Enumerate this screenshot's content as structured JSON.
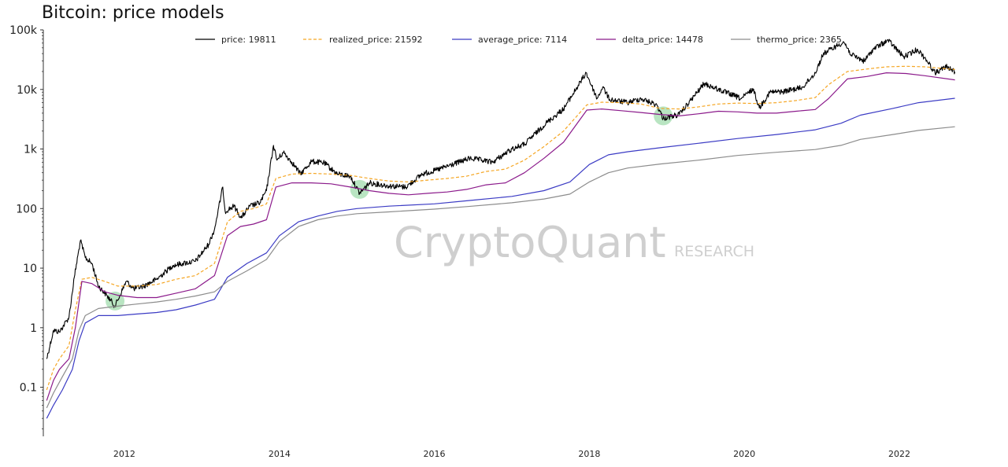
{
  "chart_data": {
    "type": "line",
    "title": "Bitcoin: price models",
    "xlabel": "",
    "ylabel": "",
    "y_scale": "log",
    "ylim": [
      0.015,
      100000
    ],
    "xlim": [
      "2010-12-15",
      "2022-10-10"
    ],
    "grid": false,
    "legend_position": "top",
    "x_ticks": [
      "2012",
      "2014",
      "2016",
      "2018",
      "2020",
      "2022"
    ],
    "y_ticks": [
      "0.1",
      "1",
      "10",
      "100",
      "1k",
      "10k",
      "100k"
    ],
    "series": [
      {
        "name": "price: 19811",
        "color": "#000000",
        "dash": "solid",
        "points": [
          [
            "2010-12-31",
            0.3
          ],
          [
            "2011-02-01",
            0.9
          ],
          [
            "2011-03-01",
            0.85
          ],
          [
            "2011-04-15",
            1.5
          ],
          [
            "2011-05-10",
            7
          ],
          [
            "2011-06-08",
            29
          ],
          [
            "2011-07-01",
            15
          ],
          [
            "2011-08-01",
            12
          ],
          [
            "2011-09-01",
            5
          ],
          [
            "2011-10-10",
            3.5
          ],
          [
            "2011-11-18",
            2.3
          ],
          [
            "2012-01-10",
            6
          ],
          [
            "2012-02-15",
            4.5
          ],
          [
            "2012-04-01",
            5
          ],
          [
            "2012-06-01",
            6.5
          ],
          [
            "2012-08-15",
            11
          ],
          [
            "2012-10-01",
            12
          ],
          [
            "2012-12-01",
            13
          ],
          [
            "2013-02-01",
            25
          ],
          [
            "2013-03-01",
            45
          ],
          [
            "2013-04-09",
            230
          ],
          [
            "2013-04-20",
            90
          ],
          [
            "2013-06-01",
            110
          ],
          [
            "2013-07-05",
            70
          ],
          [
            "2013-08-15",
            110
          ],
          [
            "2013-10-01",
            125
          ],
          [
            "2013-11-01",
            200
          ],
          [
            "2013-12-04",
            1150
          ],
          [
            "2013-12-20",
            650
          ],
          [
            "2014-01-20",
            880
          ],
          [
            "2014-03-01",
            600
          ],
          [
            "2014-04-10",
            380
          ],
          [
            "2014-06-01",
            620
          ],
          [
            "2014-08-01",
            580
          ],
          [
            "2014-10-01",
            380
          ],
          [
            "2014-12-01",
            350
          ],
          [
            "2015-01-14",
            180
          ],
          [
            "2015-03-01",
            270
          ],
          [
            "2015-06-01",
            240
          ],
          [
            "2015-08-20",
            230
          ],
          [
            "2015-11-05",
            380
          ],
          [
            "2016-01-01",
            430
          ],
          [
            "2016-06-18",
            700
          ],
          [
            "2016-10-01",
            600
          ],
          [
            "2017-01-01",
            1000
          ],
          [
            "2017-03-01",
            1200
          ],
          [
            "2017-06-10",
            2700
          ],
          [
            "2017-09-01",
            4700
          ],
          [
            "2017-12-17",
            19000
          ],
          [
            "2018-02-06",
            7000
          ],
          [
            "2018-03-05",
            11000
          ],
          [
            "2018-04-06",
            6800
          ],
          [
            "2018-06-30",
            6000
          ],
          [
            "2018-09-01",
            7000
          ],
          [
            "2018-11-15",
            5500
          ],
          [
            "2018-12-15",
            3250
          ],
          [
            "2019-03-01",
            3800
          ],
          [
            "2019-06-26",
            12500
          ],
          [
            "2019-09-01",
            10000
          ],
          [
            "2019-12-18",
            7000
          ],
          [
            "2020-02-12",
            10200
          ],
          [
            "2020-03-12",
            4900
          ],
          [
            "2020-05-01",
            9000
          ],
          [
            "2020-07-01",
            9200
          ],
          [
            "2020-10-01",
            10800
          ],
          [
            "2020-12-01",
            19000
          ],
          [
            "2021-01-08",
            40000
          ],
          [
            "2021-04-14",
            63000
          ],
          [
            "2021-05-20",
            38000
          ],
          [
            "2021-07-20",
            30000
          ],
          [
            "2021-09-01",
            48000
          ],
          [
            "2021-11-09",
            67000
          ],
          [
            "2022-01-22",
            35000
          ],
          [
            "2022-03-28",
            47000
          ],
          [
            "2022-05-10",
            31000
          ],
          [
            "2022-06-18",
            19000
          ],
          [
            "2022-08-14",
            24300
          ],
          [
            "2022-09-20",
            19811
          ]
        ]
      },
      {
        "name": "realized_price: 21592",
        "color": "#f5a623",
        "dash": "dashed",
        "points": [
          [
            "2010-12-31",
            0.09
          ],
          [
            "2011-02-01",
            0.2
          ],
          [
            "2011-03-01",
            0.3
          ],
          [
            "2011-04-15",
            0.5
          ],
          [
            "2011-05-15",
            2
          ],
          [
            "2011-06-15",
            6.5
          ],
          [
            "2011-08-01",
            7
          ],
          [
            "2011-10-01",
            6
          ],
          [
            "2011-12-01",
            5
          ],
          [
            "2012-03-01",
            5
          ],
          [
            "2012-06-01",
            5.3
          ],
          [
            "2012-09-01",
            6.5
          ],
          [
            "2012-12-01",
            7.5
          ],
          [
            "2013-03-01",
            12
          ],
          [
            "2013-05-01",
            60
          ],
          [
            "2013-07-01",
            90
          ],
          [
            "2013-09-01",
            100
          ],
          [
            "2013-11-01",
            120
          ],
          [
            "2013-12-15",
            320
          ],
          [
            "2014-03-01",
            380
          ],
          [
            "2014-06-01",
            390
          ],
          [
            "2014-09-01",
            380
          ],
          [
            "2014-12-01",
            360
          ],
          [
            "2015-03-01",
            320
          ],
          [
            "2015-06-01",
            290
          ],
          [
            "2015-09-01",
            280
          ],
          [
            "2015-12-01",
            300
          ],
          [
            "2016-03-01",
            320
          ],
          [
            "2016-06-01",
            350
          ],
          [
            "2016-09-01",
            420
          ],
          [
            "2016-12-01",
            460
          ],
          [
            "2017-03-01",
            650
          ],
          [
            "2017-06-01",
            1100
          ],
          [
            "2017-09-01",
            2000
          ],
          [
            "2017-12-20",
            5500
          ],
          [
            "2018-03-01",
            6100
          ],
          [
            "2018-06-01",
            6000
          ],
          [
            "2018-09-01",
            5700
          ],
          [
            "2018-12-01",
            4800
          ],
          [
            "2019-03-01",
            4700
          ],
          [
            "2019-06-01",
            5100
          ],
          [
            "2019-09-01",
            5700
          ],
          [
            "2019-12-01",
            5900
          ],
          [
            "2020-03-01",
            5800
          ],
          [
            "2020-06-01",
            6000
          ],
          [
            "2020-09-01",
            6500
          ],
          [
            "2020-12-01",
            7300
          ],
          [
            "2021-02-01",
            12000
          ],
          [
            "2021-05-01",
            20000
          ],
          [
            "2021-08-01",
            22000
          ],
          [
            "2021-11-01",
            24000
          ],
          [
            "2022-02-01",
            24500
          ],
          [
            "2022-05-01",
            24000
          ],
          [
            "2022-09-20",
            21592
          ]
        ]
      },
      {
        "name": "average_price: 7114",
        "color": "#3b3bc4",
        "dash": "solid",
        "points": [
          [
            "2010-12-31",
            0.03
          ],
          [
            "2011-02-01",
            0.05
          ],
          [
            "2011-03-15",
            0.09
          ],
          [
            "2011-05-01",
            0.2
          ],
          [
            "2011-06-01",
            0.6
          ],
          [
            "2011-07-01",
            1.2
          ],
          [
            "2011-09-01",
            1.6
          ],
          [
            "2011-12-01",
            1.6
          ],
          [
            "2012-03-01",
            1.7
          ],
          [
            "2012-06-01",
            1.8
          ],
          [
            "2012-09-01",
            2
          ],
          [
            "2012-12-01",
            2.4
          ],
          [
            "2013-03-01",
            3
          ],
          [
            "2013-05-01",
            7
          ],
          [
            "2013-08-01",
            12
          ],
          [
            "2013-11-01",
            18
          ],
          [
            "2014-01-01",
            35
          ],
          [
            "2014-04-01",
            60
          ],
          [
            "2014-07-01",
            75
          ],
          [
            "2014-10-01",
            90
          ],
          [
            "2015-01-01",
            100
          ],
          [
            "2015-06-01",
            110
          ],
          [
            "2016-01-01",
            120
          ],
          [
            "2016-06-01",
            135
          ],
          [
            "2017-01-01",
            160
          ],
          [
            "2017-06-01",
            200
          ],
          [
            "2017-10-01",
            280
          ],
          [
            "2018-01-01",
            550
          ],
          [
            "2018-04-01",
            800
          ],
          [
            "2018-07-01",
            900
          ],
          [
            "2018-12-01",
            1050
          ],
          [
            "2019-06-01",
            1250
          ],
          [
            "2019-12-01",
            1500
          ],
          [
            "2020-06-01",
            1750
          ],
          [
            "2020-12-01",
            2100
          ],
          [
            "2021-04-01",
            2700
          ],
          [
            "2021-07-01",
            3700
          ],
          [
            "2021-12-01",
            4800
          ],
          [
            "2022-04-01",
            6000
          ],
          [
            "2022-09-20",
            7114
          ]
        ]
      },
      {
        "name": "delta_price: 14478",
        "color": "#8b1a8b",
        "dash": "solid",
        "points": [
          [
            "2010-12-31",
            0.06
          ],
          [
            "2011-02-01",
            0.13
          ],
          [
            "2011-03-01",
            0.2
          ],
          [
            "2011-04-15",
            0.3
          ],
          [
            "2011-05-15",
            1
          ],
          [
            "2011-06-15",
            6
          ],
          [
            "2011-08-01",
            5.5
          ],
          [
            "2011-10-01",
            4
          ],
          [
            "2011-12-01",
            3.5
          ],
          [
            "2012-03-01",
            3.2
          ],
          [
            "2012-06-01",
            3.2
          ],
          [
            "2012-09-01",
            3.8
          ],
          [
            "2012-12-01",
            4.5
          ],
          [
            "2013-03-01",
            7.5
          ],
          [
            "2013-05-01",
            35
          ],
          [
            "2013-07-01",
            50
          ],
          [
            "2013-09-01",
            55
          ],
          [
            "2013-11-01",
            65
          ],
          [
            "2013-12-15",
            230
          ],
          [
            "2014-03-01",
            270
          ],
          [
            "2014-06-01",
            270
          ],
          [
            "2014-09-01",
            260
          ],
          [
            "2014-12-01",
            230
          ],
          [
            "2015-03-01",
            200
          ],
          [
            "2015-06-01",
            180
          ],
          [
            "2015-09-01",
            170
          ],
          [
            "2015-12-01",
            180
          ],
          [
            "2016-03-01",
            190
          ],
          [
            "2016-06-01",
            210
          ],
          [
            "2016-09-01",
            250
          ],
          [
            "2016-12-01",
            270
          ],
          [
            "2017-03-01",
            400
          ],
          [
            "2017-06-01",
            700
          ],
          [
            "2017-09-01",
            1300
          ],
          [
            "2017-12-20",
            4500
          ],
          [
            "2018-03-01",
            4700
          ],
          [
            "2018-06-01",
            4400
          ],
          [
            "2018-09-01",
            4100
          ],
          [
            "2018-12-01",
            3800
          ],
          [
            "2019-03-01",
            3600
          ],
          [
            "2019-06-01",
            3900
          ],
          [
            "2019-09-01",
            4300
          ],
          [
            "2019-12-01",
            4200
          ],
          [
            "2020-03-01",
            4000
          ],
          [
            "2020-06-01",
            4000
          ],
          [
            "2020-09-01",
            4300
          ],
          [
            "2020-12-01",
            4600
          ],
          [
            "2021-02-01",
            7000
          ],
          [
            "2021-05-01",
            15000
          ],
          [
            "2021-08-01",
            16500
          ],
          [
            "2021-11-01",
            19000
          ],
          [
            "2022-02-01",
            18500
          ],
          [
            "2022-05-01",
            17000
          ],
          [
            "2022-09-20",
            14478
          ]
        ]
      },
      {
        "name": "thermo_price: 2365",
        "color": "#8c8c8c",
        "dash": "solid",
        "points": [
          [
            "2010-12-31",
            0.045
          ],
          [
            "2011-02-01",
            0.08
          ],
          [
            "2011-03-15",
            0.15
          ],
          [
            "2011-05-01",
            0.3
          ],
          [
            "2011-06-01",
            0.9
          ],
          [
            "2011-07-01",
            1.6
          ],
          [
            "2011-09-01",
            2.1
          ],
          [
            "2011-12-01",
            2.3
          ],
          [
            "2012-03-01",
            2.5
          ],
          [
            "2012-06-01",
            2.7
          ],
          [
            "2012-09-01",
            3
          ],
          [
            "2012-12-01",
            3.4
          ],
          [
            "2013-03-01",
            4
          ],
          [
            "2013-05-01",
            6
          ],
          [
            "2013-08-01",
            9
          ],
          [
            "2013-11-01",
            14
          ],
          [
            "2014-01-01",
            28
          ],
          [
            "2014-04-01",
            50
          ],
          [
            "2014-07-01",
            65
          ],
          [
            "2014-10-01",
            75
          ],
          [
            "2015-01-01",
            82
          ],
          [
            "2015-06-01",
            88
          ],
          [
            "2016-01-01",
            98
          ],
          [
            "2016-06-01",
            108
          ],
          [
            "2017-01-01",
            125
          ],
          [
            "2017-06-01",
            145
          ],
          [
            "2017-10-01",
            175
          ],
          [
            "2018-01-01",
            280
          ],
          [
            "2018-04-01",
            400
          ],
          [
            "2018-07-01",
            480
          ],
          [
            "2018-12-01",
            560
          ],
          [
            "2019-06-01",
            650
          ],
          [
            "2019-12-01",
            780
          ],
          [
            "2020-06-01",
            880
          ],
          [
            "2020-12-01",
            980
          ],
          [
            "2021-04-01",
            1150
          ],
          [
            "2021-07-01",
            1450
          ],
          [
            "2021-12-01",
            1750
          ],
          [
            "2022-04-01",
            2050
          ],
          [
            "2022-09-20",
            2365
          ]
        ]
      }
    ],
    "highlight_markers": [
      {
        "date": "2011-11-18",
        "value": 2.8,
        "color": "#7fcf8f"
      },
      {
        "date": "2015-01-14",
        "value": 210,
        "color": "#7fcf8f"
      },
      {
        "date": "2018-12-15",
        "value": 3600,
        "color": "#7fcf8f"
      }
    ],
    "watermark": {
      "main": "CryptoQuant",
      "sub": "RESEARCH"
    }
  }
}
